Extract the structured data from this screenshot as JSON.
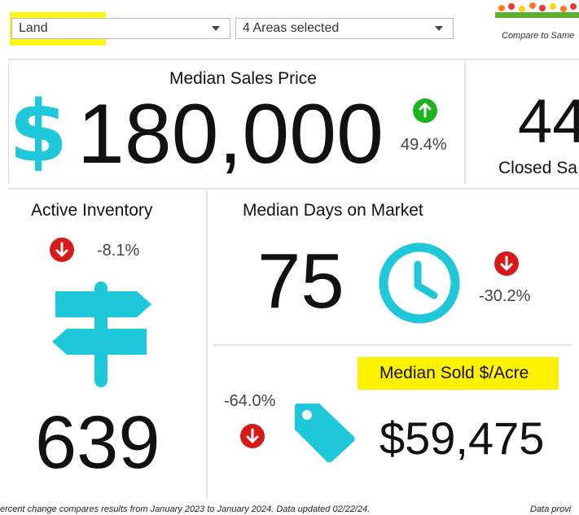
{
  "filters": {
    "property_type": "Land",
    "areas": "4 Areas selected"
  },
  "compare_note": "Compare to Same",
  "median_sales_price": {
    "title": "Median Sales Price",
    "value": "180,000",
    "currency_symbol": "$",
    "change": "49.4%",
    "direction": "up"
  },
  "closed_sales": {
    "value": "44",
    "title": "Closed Sa"
  },
  "active_inventory": {
    "title": "Active Inventory",
    "change": "-8.1%",
    "direction": "down",
    "value": "639"
  },
  "median_days_on_market": {
    "title": "Median Days on Market",
    "value": "75",
    "change": "-30.2%",
    "direction": "down"
  },
  "median_sold_per_acre": {
    "title": "Median Sold $/Acre",
    "value": "$59,475",
    "change": "-64.0%",
    "direction": "down"
  },
  "footer": {
    "note": "ercent change compares results from January 2023 to January 2024.  Data updated 02/22/24.",
    "right": "Data provi"
  },
  "colors": {
    "accent_teal": "#1ec8d8",
    "up_green": "#1db31d",
    "down_red": "#d61a1a",
    "highlight_yellow": "#fff200"
  },
  "icons": [
    "chevron-down-icon",
    "dollar-sign-icon",
    "arrow-up-icon",
    "arrow-down-icon",
    "signpost-icon",
    "clock-icon",
    "price-tag-icon",
    "flowers-image"
  ]
}
